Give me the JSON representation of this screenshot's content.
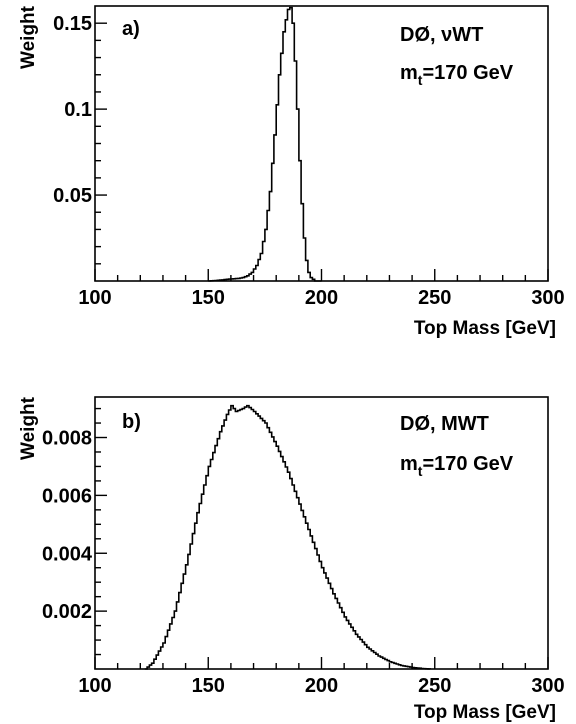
{
  "chart_data": [
    {
      "type": "line",
      "panel_label": "a)",
      "annotation": {
        "line1": "DØ, νWT",
        "line2_main": "m",
        "line2_sub": "t",
        "line2_rest": "=170 GeV"
      },
      "xlabel": "Top Mass [GeV]",
      "ylabel": "Weight",
      "xlim": [
        100,
        300
      ],
      "ylim": [
        0,
        0.16
      ],
      "xticks": [
        {
          "v": 100,
          "t": "100"
        },
        {
          "v": 150,
          "t": "150"
        },
        {
          "v": 200,
          "t": "200"
        },
        {
          "v": 250,
          "t": "250"
        },
        {
          "v": 300,
          "t": "300"
        }
      ],
      "yticks": [
        {
          "v": 0.05,
          "t": "0.05"
        },
        {
          "v": 0.1,
          "t": "0.1"
        },
        {
          "v": 0.15,
          "t": "0.15"
        }
      ],
      "minor_xticks": [
        110,
        120,
        130,
        140,
        160,
        170,
        180,
        190,
        210,
        220,
        230,
        240,
        260,
        270,
        280,
        290
      ],
      "minor_yticks": [
        0.01,
        0.02,
        0.03,
        0.04,
        0.06,
        0.07,
        0.08,
        0.09,
        0.11,
        0.12,
        0.13,
        0.14
      ],
      "series": [
        {
          "x": [
            150,
            155,
            158,
            160,
            163,
            165,
            167,
            169,
            171,
            173,
            175,
            177,
            179,
            181,
            183,
            184,
            185,
            186,
            187,
            188,
            189,
            190,
            191,
            192,
            193,
            194,
            195,
            196,
            197,
            200
          ],
          "y": [
            0.0,
            0.0005,
            0.001,
            0.0012,
            0.0015,
            0.002,
            0.003,
            0.005,
            0.009,
            0.016,
            0.03,
            0.052,
            0.085,
            0.12,
            0.145,
            0.152,
            0.158,
            0.159,
            0.15,
            0.128,
            0.1,
            0.07,
            0.045,
            0.025,
            0.012,
            0.005,
            0.002,
            0.001,
            0.0,
            0.0
          ]
        }
      ]
    },
    {
      "type": "line",
      "panel_label": "b)",
      "annotation": {
        "line1": "DØ, MWT",
        "line2_main": "m",
        "line2_sub": "t",
        "line2_rest": "=170 GeV"
      },
      "xlabel": "Top Mass [GeV]",
      "ylabel": "Weight",
      "xlim": [
        100,
        300
      ],
      "ylim": [
        0,
        0.0094
      ],
      "xticks": [
        {
          "v": 100,
          "t": "100"
        },
        {
          "v": 150,
          "t": "150"
        },
        {
          "v": 200,
          "t": "200"
        },
        {
          "v": 250,
          "t": "250"
        },
        {
          "v": 300,
          "t": "300"
        }
      ],
      "yticks": [
        {
          "v": 0.002,
          "t": "0.002"
        },
        {
          "v": 0.004,
          "t": "0.004"
        },
        {
          "v": 0.006,
          "t": "0.006"
        },
        {
          "v": 0.008,
          "t": "0.008"
        }
      ],
      "minor_xticks": [
        110,
        120,
        130,
        140,
        160,
        170,
        180,
        190,
        210,
        220,
        230,
        240,
        260,
        270,
        280,
        290
      ],
      "minor_yticks": [
        0.0005,
        0.001,
        0.0015,
        0.0025,
        0.003,
        0.0035,
        0.0045,
        0.005,
        0.0055,
        0.0065,
        0.007,
        0.0075,
        0.0085,
        0.009
      ],
      "series": [
        {
          "x": [
            122,
            125,
            130,
            135,
            140,
            145,
            150,
            155,
            158,
            160,
            162,
            165,
            167,
            170,
            175,
            180,
            185,
            190,
            195,
            200,
            205,
            210,
            215,
            220,
            225,
            230,
            235,
            240,
            245,
            248
          ],
          "y": [
            0.0,
            0.0002,
            0.0009,
            0.002,
            0.0036,
            0.0054,
            0.007,
            0.0082,
            0.0088,
            0.0091,
            0.0089,
            0.009,
            0.0091,
            0.0089,
            0.0085,
            0.0077,
            0.0068,
            0.0057,
            0.0046,
            0.0035,
            0.0026,
            0.0018,
            0.0012,
            0.00075,
            0.00045,
            0.00025,
            0.00012,
            5e-05,
            1e-05,
            0.0
          ]
        }
      ]
    }
  ]
}
